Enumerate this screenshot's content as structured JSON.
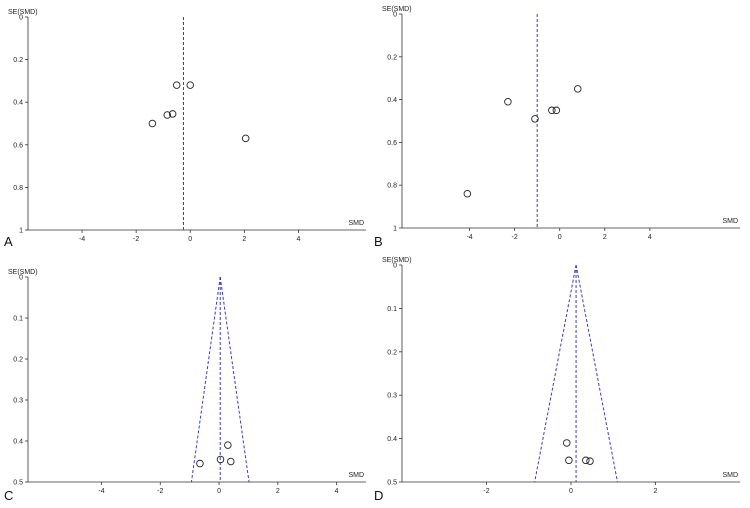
{
  "chart_data": [
    {
      "type": "scatter",
      "panel_label": "A",
      "xlabel": "SMD",
      "ylabel": "SE(SMD)",
      "xlim": [
        -6,
        6.5
      ],
      "ylim": [
        0,
        1
      ],
      "y_inverted": true,
      "xticks": [
        -4,
        -2,
        0,
        2,
        4
      ],
      "yticks": [
        0,
        0.2,
        0.4,
        0.6,
        0.8,
        1
      ],
      "ytick_labels": [
        "0",
        "0.2",
        "0.4",
        "0.6",
        "0.8",
        "1"
      ],
      "center_line_x": -0.25,
      "funnel": false,
      "points": [
        {
          "x": -0.5,
          "y": 0.32
        },
        {
          "x": 0.0,
          "y": 0.32
        },
        {
          "x": -0.85,
          "y": 0.46
        },
        {
          "x": -0.65,
          "y": 0.455
        },
        {
          "x": -1.4,
          "y": 0.5
        },
        {
          "x": 2.05,
          "y": 0.57
        }
      ]
    },
    {
      "type": "scatter",
      "panel_label": "B",
      "xlabel": "SMD",
      "ylabel": "SE(SMD)",
      "xlim": [
        -7,
        8
      ],
      "ylim": [
        0,
        1
      ],
      "y_inverted": true,
      "xticks": [
        -4,
        -2,
        0,
        2,
        4
      ],
      "yticks": [
        0,
        0.2,
        0.4,
        0.6,
        0.8,
        1
      ],
      "ytick_labels": [
        "0",
        "0.2",
        "0.4",
        "0.6",
        "0.8",
        "1"
      ],
      "center_line_x": -1.0,
      "funnel": false,
      "points": [
        {
          "x": -2.3,
          "y": 0.41
        },
        {
          "x": -1.1,
          "y": 0.49
        },
        {
          "x": -0.35,
          "y": 0.45
        },
        {
          "x": -0.15,
          "y": 0.45
        },
        {
          "x": 0.8,
          "y": 0.35
        },
        {
          "x": -4.1,
          "y": 0.84
        }
      ]
    },
    {
      "type": "scatter",
      "panel_label": "C",
      "xlabel": "SMD",
      "ylabel": "SE(SMD)",
      "xlim": [
        -6.5,
        5
      ],
      "ylim": [
        0,
        0.5
      ],
      "y_inverted": true,
      "xticks": [
        -4,
        -2,
        0,
        2,
        4
      ],
      "yticks": [
        0,
        0.1,
        0.2,
        0.3,
        0.4,
        0.5
      ],
      "ytick_labels": [
        "0",
        "0.1",
        "0.2",
        "0.3",
        "0.4",
        "0.5"
      ],
      "center_line_x": 0.04,
      "funnel": true,
      "points": [
        {
          "x": 0.3,
          "y": 0.41
        },
        {
          "x": 0.05,
          "y": 0.445
        },
        {
          "x": 0.4,
          "y": 0.45
        },
        {
          "x": -0.65,
          "y": 0.455
        }
      ]
    },
    {
      "type": "scatter",
      "panel_label": "D",
      "xlabel": "SMD",
      "ylabel": "SE(SMD)",
      "xlim": [
        -4,
        4
      ],
      "ylim": [
        0,
        0.5
      ],
      "y_inverted": true,
      "xticks": [
        -2,
        0,
        2
      ],
      "yticks": [
        0,
        0.1,
        0.2,
        0.3,
        0.4,
        0.5
      ],
      "ytick_labels": [
        "0",
        "0.1",
        "0.2",
        "0.3",
        "0.4",
        "0.5"
      ],
      "center_line_x": 0.12,
      "funnel": true,
      "points": [
        {
          "x": -0.1,
          "y": 0.41
        },
        {
          "x": -0.05,
          "y": 0.45
        },
        {
          "x": 0.35,
          "y": 0.45
        },
        {
          "x": 0.45,
          "y": 0.452
        }
      ]
    }
  ]
}
